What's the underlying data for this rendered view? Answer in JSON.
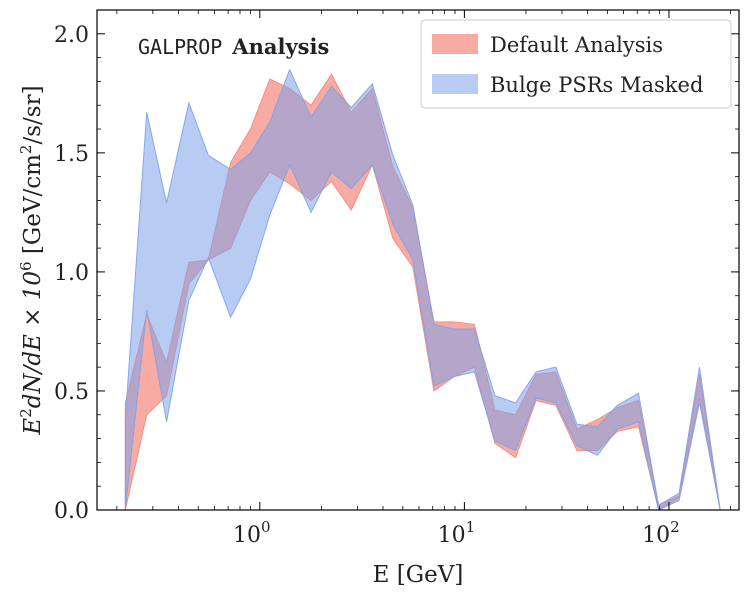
{
  "chart_data": {
    "type": "area",
    "xscale": "log",
    "xlim": [
      0.16,
      220
    ],
    "ylim": [
      0.0,
      2.1
    ],
    "xlabel": "E [GeV]",
    "ylabel": "E^2 dN/dE × 10^6 [GeV/cm^2/s/sr]",
    "ylabel_parts": {
      "main": "E",
      "sup1": "2",
      "mid": "dN/dE × 10",
      "sup2": "6",
      "units_a": " [GeV/cm",
      "sup3": "2",
      "units_b": "/s/sr]"
    },
    "x_ticks": [
      {
        "value": 1,
        "base": "10",
        "exp": "0"
      },
      {
        "value": 10,
        "base": "10",
        "exp": "1"
      },
      {
        "value": 100,
        "base": "10",
        "exp": "2"
      }
    ],
    "y_ticks": [
      {
        "value": 0.0,
        "label": "0.0"
      },
      {
        "value": 0.5,
        "label": "0.5"
      },
      {
        "value": 1.0,
        "label": "1.0"
      },
      {
        "value": 1.5,
        "label": "1.5"
      },
      {
        "value": 2.0,
        "label": "2.0"
      }
    ],
    "annotation": {
      "mono": "GALPROP",
      "bold": "Analysis"
    },
    "legend_position": "top-right",
    "series": [
      {
        "name": "Default Analysis",
        "color": "#f4877a",
        "opacity": 0.7,
        "x": [
          0.22,
          0.28,
          0.35,
          0.45,
          0.56,
          0.72,
          0.9,
          1.12,
          1.4,
          1.78,
          2.24,
          2.8,
          3.55,
          4.47,
          5.6,
          7.1,
          8.9,
          11.2,
          14.1,
          17.8,
          22.4,
          28.0,
          35.5,
          44.7,
          56.0,
          71.0,
          89.0,
          112.0,
          141.0,
          178.0
        ],
        "lower": [
          0.0,
          0.4,
          0.48,
          0.95,
          1.05,
          1.1,
          1.3,
          1.42,
          1.37,
          1.3,
          1.38,
          1.26,
          1.45,
          1.14,
          1.02,
          0.5,
          0.56,
          0.6,
          0.28,
          0.22,
          0.46,
          0.44,
          0.25,
          0.25,
          0.33,
          0.35,
          0.0,
          0.05,
          0.47,
          0.0
        ],
        "upper": [
          0.45,
          0.82,
          0.62,
          1.04,
          1.05,
          1.46,
          1.6,
          1.81,
          1.77,
          1.7,
          1.83,
          1.67,
          1.77,
          1.44,
          1.27,
          0.79,
          0.79,
          0.78,
          0.42,
          0.4,
          0.57,
          0.58,
          0.34,
          0.38,
          0.43,
          0.46,
          0.02,
          0.06,
          0.57,
          0.0
        ]
      },
      {
        "name": "Bulge PSRs Masked",
        "color": "#7ea1ea",
        "opacity": 0.55,
        "x": [
          0.22,
          0.28,
          0.35,
          0.45,
          0.56,
          0.72,
          0.9,
          1.12,
          1.4,
          1.78,
          2.24,
          2.8,
          3.55,
          4.47,
          5.6,
          7.1,
          8.9,
          11.2,
          14.1,
          17.8,
          22.4,
          28.0,
          35.5,
          44.7,
          56.0,
          71.0,
          89.0,
          112.0,
          141.0,
          178.0
        ],
        "lower": [
          0.0,
          0.84,
          0.37,
          0.88,
          1.06,
          0.81,
          0.97,
          1.24,
          1.45,
          1.25,
          1.42,
          1.35,
          1.45,
          1.2,
          1.05,
          0.52,
          0.56,
          0.58,
          0.29,
          0.25,
          0.47,
          0.45,
          0.27,
          0.23,
          0.34,
          0.37,
          0.0,
          0.04,
          0.45,
          0.0
        ],
        "upper": [
          0.38,
          1.67,
          1.29,
          1.71,
          1.49,
          1.43,
          1.5,
          1.63,
          1.85,
          1.65,
          1.78,
          1.69,
          1.79,
          1.49,
          1.28,
          0.78,
          0.76,
          0.76,
          0.48,
          0.45,
          0.58,
          0.6,
          0.36,
          0.35,
          0.44,
          0.49,
          0.02,
          0.07,
          0.6,
          0.0
        ]
      }
    ]
  }
}
